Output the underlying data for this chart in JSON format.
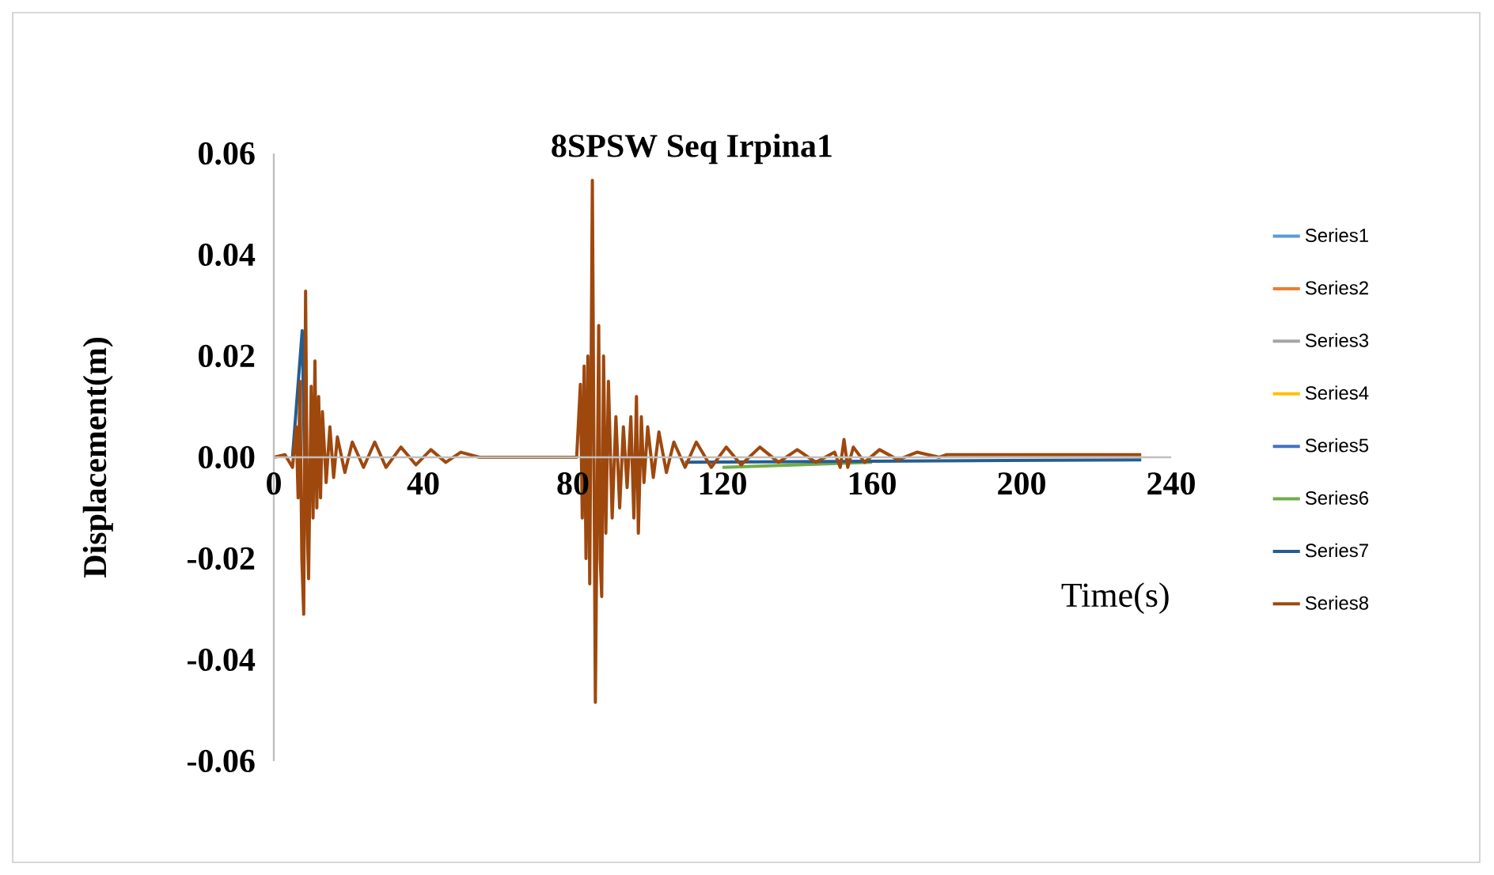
{
  "chart_data": {
    "type": "line",
    "title": "8SPSW Seq Irpina1",
    "xlabel": "Time(s)",
    "ylabel": "Displacement(m)",
    "xlim": [
      0,
      240
    ],
    "xticks": [
      0,
      40,
      80,
      120,
      160,
      200,
      240
    ],
    "ylim": [
      -0.06,
      0.06
    ],
    "yticks": [
      {
        "value": -0.06,
        "label": "-0.06"
      },
      {
        "value": -0.04,
        "label": "-0.04"
      },
      {
        "value": -0.02,
        "label": "-0.02"
      },
      {
        "value": 0,
        "label": "0.00"
      },
      {
        "value": 0.02,
        "label": "0.02"
      },
      {
        "value": 0.04,
        "label": "0.04"
      },
      {
        "value": 0.06,
        "label": "0.06"
      }
    ],
    "grid": false,
    "legend": "right",
    "series": [
      {
        "name": "Series1",
        "color": "#5b9bd5"
      },
      {
        "name": "Series2",
        "color": "#ed7d31"
      },
      {
        "name": "Series3",
        "color": "#a5a5a5"
      },
      {
        "name": "Series4",
        "color": "#ffc000"
      },
      {
        "name": "Series5",
        "color": "#4472c4"
      },
      {
        "name": "Series6",
        "color": "#70ad47",
        "x": [
          120,
          140,
          160
        ],
        "values": [
          -0.002,
          -0.0015,
          -0.001
        ]
      },
      {
        "name": "Series7",
        "color": "#255e91",
        "x": [
          5,
          7.6,
          8.2,
          9,
          110,
          232
        ],
        "values": [
          0,
          0.025,
          0,
          null,
          -0.001,
          -0.0005
        ]
      },
      {
        "name": "Series8",
        "color": "#9e480e",
        "x": [
          0,
          3,
          5,
          6,
          6.5,
          7,
          7.5,
          8,
          8.5,
          9,
          9.3,
          10,
          10.5,
          11,
          11.5,
          12,
          12.5,
          13,
          14,
          15,
          16,
          17,
          19,
          21,
          24,
          27,
          30,
          34,
          38,
          42,
          46,
          50,
          55,
          81,
          82,
          82.5,
          83,
          83.5,
          84,
          84.5,
          85.2,
          86,
          86.9,
          87.3,
          87.7,
          88.2,
          88.8,
          89.5,
          90.5,
          91.5,
          92.5,
          93.5,
          94.5,
          95.5,
          96.3,
          97,
          97.5,
          98.3,
          99,
          100,
          101.5,
          103,
          105,
          107,
          110,
          113,
          117,
          121,
          125,
          130,
          135,
          140,
          145,
          150,
          151.5,
          152.5,
          153.5,
          155,
          158,
          162,
          167,
          172,
          178,
          180,
          232
        ],
        "values": [
          0,
          0.0005,
          -0.002,
          0.006,
          -0.008,
          0.015,
          -0.02,
          -0.031,
          0.0328,
          -0.015,
          -0.024,
          0.014,
          -0.012,
          0.019,
          -0.01,
          0.012,
          -0.008,
          0.009,
          -0.005,
          0.006,
          -0.004,
          0.004,
          -0.003,
          0.003,
          -0.002,
          0.003,
          -0.002,
          0.002,
          -0.0015,
          0.0015,
          -0.001,
          0.001,
          0,
          0,
          0.0144,
          -0.012,
          0.018,
          -0.02,
          0.02,
          -0.025,
          0.0547,
          -0.0484,
          0.026,
          -0.02,
          -0.0275,
          0.02,
          -0.015,
          0.015,
          -0.012,
          0.008,
          -0.01,
          0.006,
          -0.006,
          0.008,
          -0.012,
          0.012,
          -0.015,
          0.008,
          -0.005,
          0.006,
          -0.004,
          0.005,
          -0.003,
          0.003,
          -0.002,
          0.003,
          -0.002,
          0.002,
          -0.0015,
          0.002,
          -0.001,
          0.0015,
          -0.001,
          0.001,
          -0.002,
          0.0035,
          -0.002,
          0.002,
          -0.001,
          0.0015,
          -0.0005,
          0.001,
          0,
          0.0005,
          0.0005
        ]
      }
    ]
  }
}
